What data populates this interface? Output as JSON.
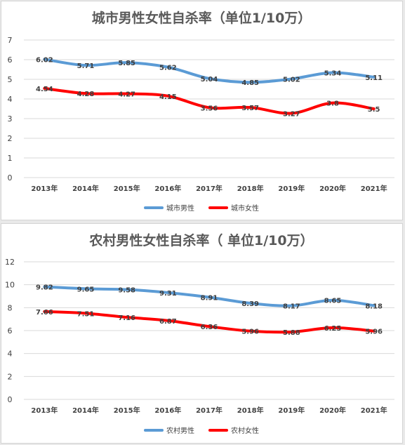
{
  "chart_data": [
    {
      "type": "line",
      "title": "城市男性女性自杀率（单位1/10万）",
      "categories": [
        "2013年",
        "2014年",
        "2015年",
        "2016年",
        "2017年",
        "2018年",
        "2019年",
        "2020年",
        "2021年"
      ],
      "series": [
        {
          "name": "城市男性",
          "color": "#5b9bd5",
          "values": [
            6.02,
            5.71,
            5.85,
            5.62,
            5.04,
            4.85,
            5.02,
            5.34,
            5.11
          ],
          "labels": [
            "6.02",
            "5.71",
            "5.85",
            "5.62",
            "5.04",
            "4.85",
            "5.02",
            "5.34",
            "5.11"
          ]
        },
        {
          "name": "城市女性",
          "color": "#ff0000",
          "values": [
            4.54,
            4.28,
            4.27,
            4.15,
            3.56,
            3.57,
            3.27,
            3.8,
            3.5
          ],
          "labels": [
            "4.54",
            "4.28",
            "4.27",
            "4.15",
            "3.56",
            "3.57",
            "3.27",
            "3.8",
            "3.5"
          ]
        }
      ],
      "ylim": [
        0,
        7
      ],
      "yticks": [
        "0",
        "1",
        "2",
        "3",
        "4",
        "5",
        "6",
        "7"
      ],
      "grid": true,
      "legend": "bottom"
    },
    {
      "type": "line",
      "title": "农村男性女性自杀率（ 单位1/10万）",
      "categories": [
        "2013年",
        "2014年",
        "2015年",
        "2016年",
        "2017年",
        "2018年",
        "2019年",
        "2020年",
        "2021年"
      ],
      "series": [
        {
          "name": "农村男性",
          "color": "#5b9bd5",
          "values": [
            9.82,
            9.65,
            9.58,
            9.31,
            8.91,
            8.39,
            8.17,
            8.65,
            8.18
          ],
          "labels": [
            "9.82",
            "9.65",
            "9.58",
            "9.31",
            "8.91",
            "8.39",
            "8.17",
            "8.65",
            "8.18"
          ]
        },
        {
          "name": "农村女性",
          "color": "#ff0000",
          "values": [
            7.66,
            7.51,
            7.16,
            6.87,
            6.36,
            5.96,
            5.88,
            6.25,
            5.96
          ],
          "labels": [
            "7.66",
            "7.51",
            "7.16",
            "6.87",
            "6.36",
            "5.96",
            "5.88",
            "6.25",
            "5.96"
          ]
        }
      ],
      "ylim": [
        0,
        12
      ],
      "yticks": [
        "0",
        "2",
        "4",
        "6",
        "8",
        "10",
        "12"
      ],
      "grid": true,
      "legend": "bottom"
    }
  ]
}
